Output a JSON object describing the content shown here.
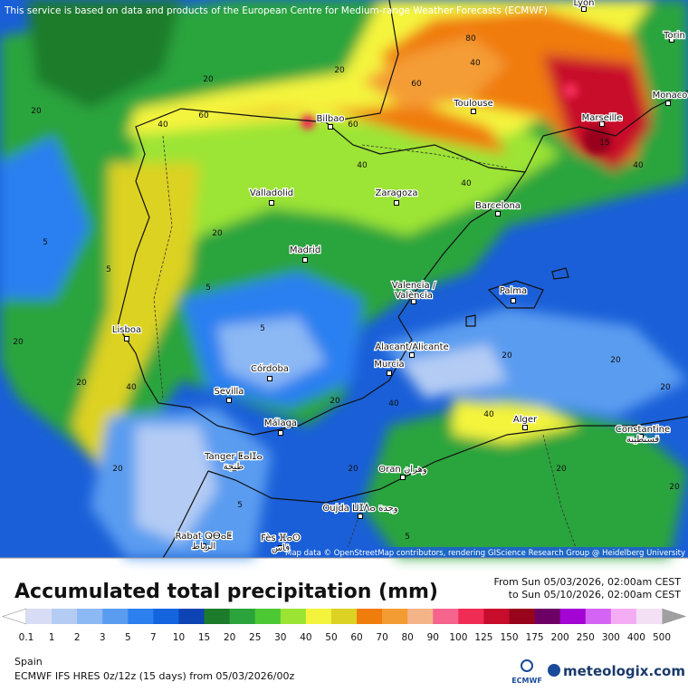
{
  "map": {
    "notice": "This service is based on data and products of the European Centre for Medium-range Weather Forecasts (ECMWF)",
    "attribution": "Map data © OpenStreetMap contributors, rendering GIScience Research Group @ Heidelberg University",
    "cities": [
      {
        "name": "Lyon"
      },
      {
        "name": "Torin"
      },
      {
        "name": "Monaco"
      },
      {
        "name": "Bilbao"
      },
      {
        "name": "Toulouse"
      },
      {
        "name": "Marseille"
      },
      {
        "name": "Valladolid"
      },
      {
        "name": "Zaragoza"
      },
      {
        "name": "Barcelona"
      },
      {
        "name": "Madrid"
      },
      {
        "name": "Valencia /",
        "name2": "València"
      },
      {
        "name": "Palma"
      },
      {
        "name": "Lisboa"
      },
      {
        "name": "Alacant/Alicante"
      },
      {
        "name": "Murcia"
      },
      {
        "name": "Córdoba"
      },
      {
        "name": "Sevilla"
      },
      {
        "name": "Málaga"
      },
      {
        "name": "Alger"
      },
      {
        "name": "Constantine",
        "name2": "قسنطينة"
      },
      {
        "name": "Tanger ⵟⴰⵏⵊⴰ",
        "name2": "طنجة"
      },
      {
        "name": "Oran وهران"
      },
      {
        "name": "Oujda ⵡⵊⴷⴰ وجدة"
      },
      {
        "name": "Rabat ⵕⴱⴰⵟ",
        "name2": "الرباط"
      },
      {
        "name": "Fès ⴼⴰⵙ",
        "name2": "فاس"
      }
    ],
    "contour_labels": [
      20,
      40,
      60,
      80,
      60,
      40,
      20,
      40,
      60,
      40,
      20,
      5,
      20,
      40,
      20,
      5,
      5,
      20,
      40,
      20,
      5,
      20,
      20,
      40,
      20,
      5,
      20,
      20,
      5,
      15,
      40,
      20,
      20
    ]
  },
  "footer": {
    "title": "Accumulated total precipitation (mm)",
    "period_from": "From Sun 05/03/2026, 02:00am CEST",
    "period_to": "to Sun 05/10/2026, 02:00am CEST",
    "region": "Spain",
    "model": "ECMWF IFS HRES 0z/12z (15 days) from  05/03/2026/00z",
    "ecmwf_logo": "ECMWF",
    "brand": "meteologix.com"
  },
  "legend": {
    "labels": [
      "0.1",
      "1",
      "2",
      "3",
      "5",
      "7",
      "10",
      "15",
      "20",
      "25",
      "30",
      "40",
      "50",
      "60",
      "70",
      "80",
      "90",
      "100",
      "125",
      "150",
      "175",
      "200",
      "250",
      "300",
      "400",
      "500"
    ],
    "colors": [
      "#d8dcf4",
      "#b4ccf4",
      "#8cb8f4",
      "#5a9cf0",
      "#2c80f0",
      "#1464e0",
      "#0c44b4",
      "#1c7c2c",
      "#2ca43c",
      "#4cc834",
      "#9ce434",
      "#f4f43c",
      "#dcd224",
      "#f07c0c",
      "#f49c34",
      "#f4b488",
      "#f4648c",
      "#f02c54",
      "#c80c2c",
      "#98041c",
      "#6c0064",
      "#a404d4",
      "#d464f4",
      "#f4acf4",
      "#f4e0f4"
    ],
    "arrow_left_color": "#ffffff",
    "arrow_right_color": "#a0a0a0"
  }
}
